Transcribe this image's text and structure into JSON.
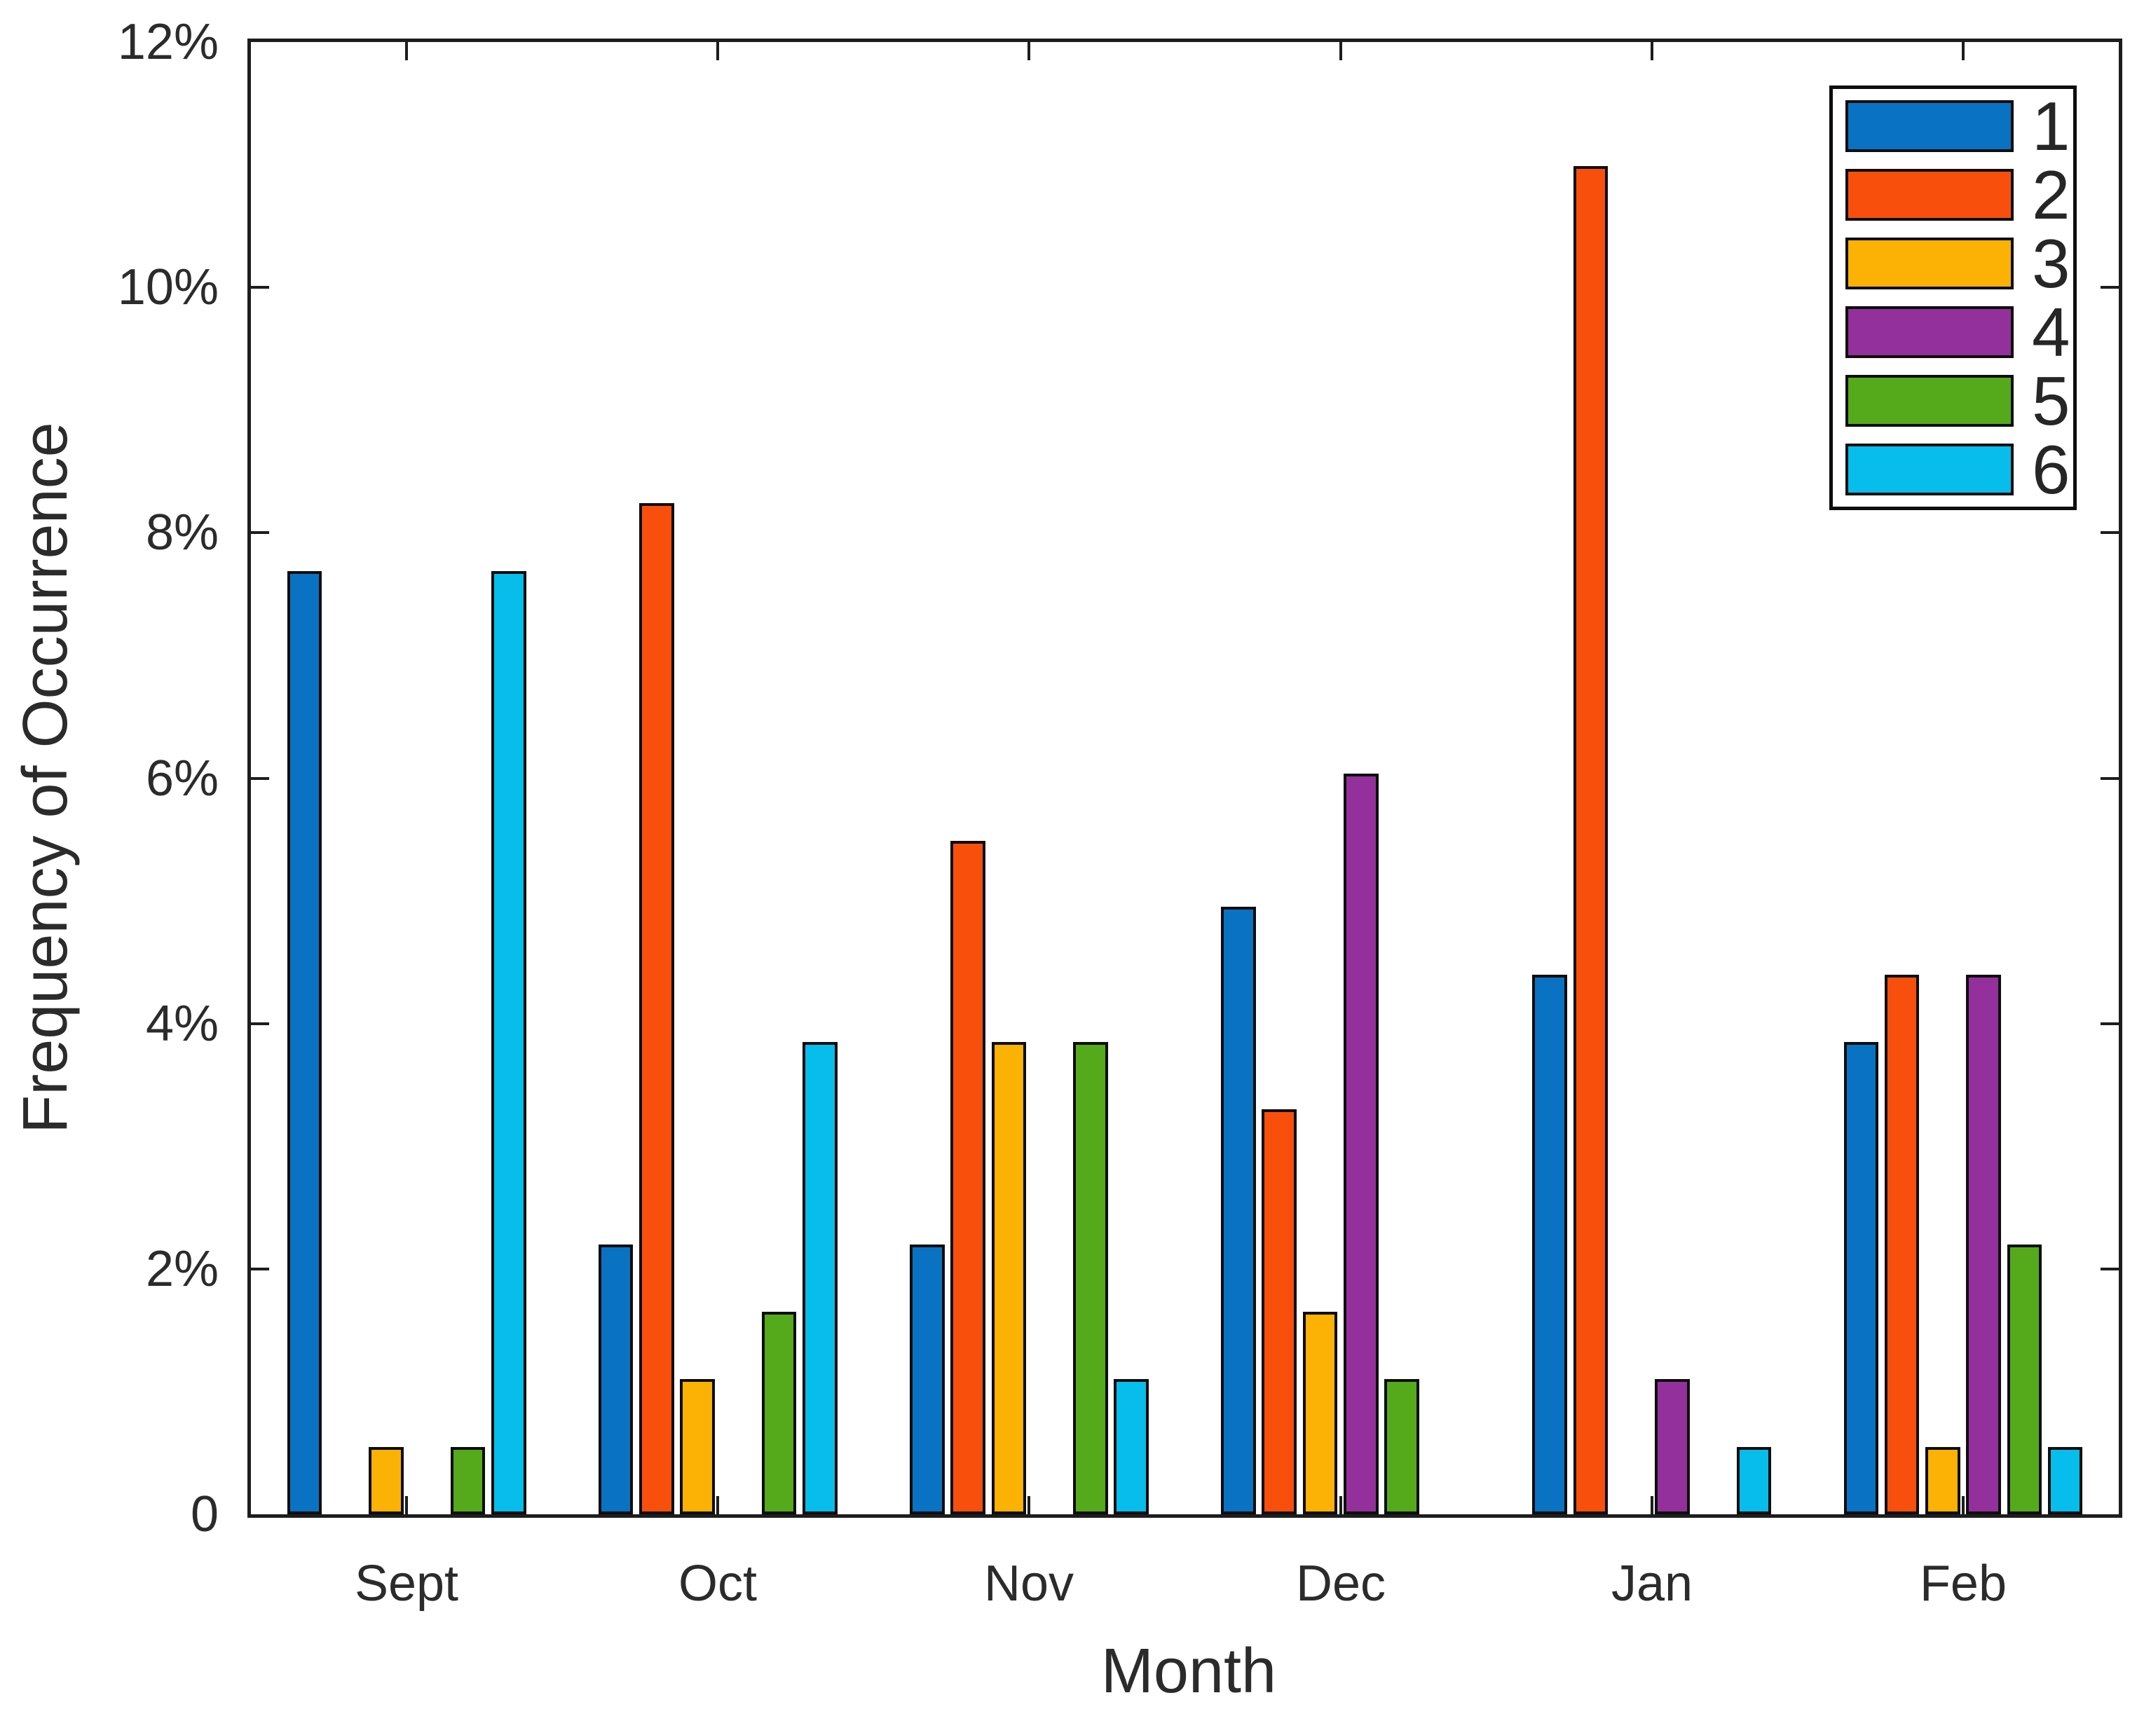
{
  "chart_data": {
    "type": "bar",
    "bar_mode": "grouped",
    "title": "",
    "xlabel": "Month",
    "ylabel": "Frequency of Occurrence",
    "categories": [
      "Sept",
      "Oct",
      "Nov",
      "Dec",
      "Jan",
      "Feb"
    ],
    "series": [
      {
        "name": "1",
        "color": "#0A72C2",
        "values": [
          7.69,
          2.2,
          2.2,
          4.95,
          4.4,
          3.85
        ]
      },
      {
        "name": "2",
        "color": "#F94F0D",
        "values": [
          0,
          8.24,
          5.49,
          3.3,
          10.99,
          4.4
        ]
      },
      {
        "name": "3",
        "color": "#FCB105",
        "values": [
          0.55,
          1.1,
          3.85,
          1.65,
          0,
          0.55
        ]
      },
      {
        "name": "4",
        "color": "#93309B",
        "values": [
          0,
          0,
          0,
          6.04,
          1.1,
          4.4
        ]
      },
      {
        "name": "5",
        "color": "#55AA1B",
        "values": [
          0.55,
          1.65,
          3.85,
          1.1,
          0,
          2.2
        ]
      },
      {
        "name": "6",
        "color": "#06BDEC",
        "values": [
          7.69,
          3.85,
          1.1,
          0,
          0.55,
          0.55
        ]
      }
    ],
    "ylim": [
      0,
      12
    ],
    "yticks": [
      {
        "value": 0,
        "label": "0"
      },
      {
        "value": 2,
        "label": "2%"
      },
      {
        "value": 4,
        "label": "4%"
      },
      {
        "value": 6,
        "label": "6%"
      },
      {
        "value": 8,
        "label": "8%"
      },
      {
        "value": 10,
        "label": "10%"
      },
      {
        "value": 12,
        "label": "12%"
      }
    ],
    "grid": false,
    "legend_position": "top-right",
    "tick_direction": "in",
    "axes_box": true
  }
}
